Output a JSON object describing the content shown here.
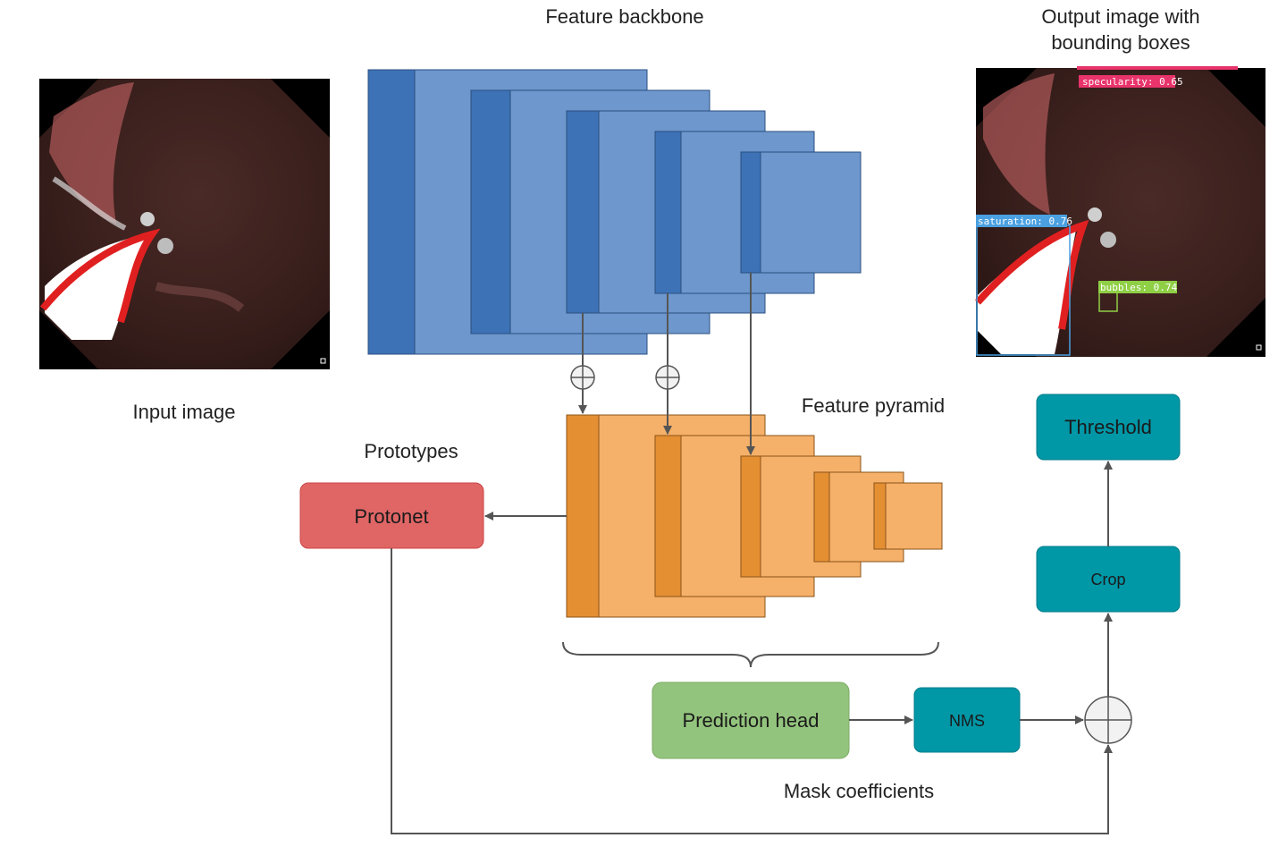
{
  "labels": {
    "feature_backbone": "Feature backbone",
    "output_image": [
      "Output image with",
      "bounding boxes"
    ],
    "input_image": "Input image",
    "feature_pyramid": "Feature pyramid",
    "prototypes": "Prototypes",
    "mask_coefficients": "Mask coefficients"
  },
  "nodes": {
    "protonet": "Protonet",
    "prediction_head": "Prediction head",
    "nms": "NMS",
    "crop": "Crop",
    "threshold": "Threshold"
  },
  "detections": [
    {
      "label": "specularity: 0.65",
      "color": "#e8336b"
    },
    {
      "label": "saturation: 0.76",
      "color": "#4aa0e0"
    },
    {
      "label": "bubbles: 0.74",
      "color": "#8fcf45"
    }
  ],
  "colors": {
    "backbone_fill": "#6d97cd",
    "backbone_dark": "#3d72b6",
    "pyramid_fill": "#f5b06a",
    "pyramid_dark": "#e58f33",
    "protonet": "#e06666",
    "prediction_head": "#93c47d",
    "teal": "#0097a7",
    "arrow": "#555555"
  }
}
